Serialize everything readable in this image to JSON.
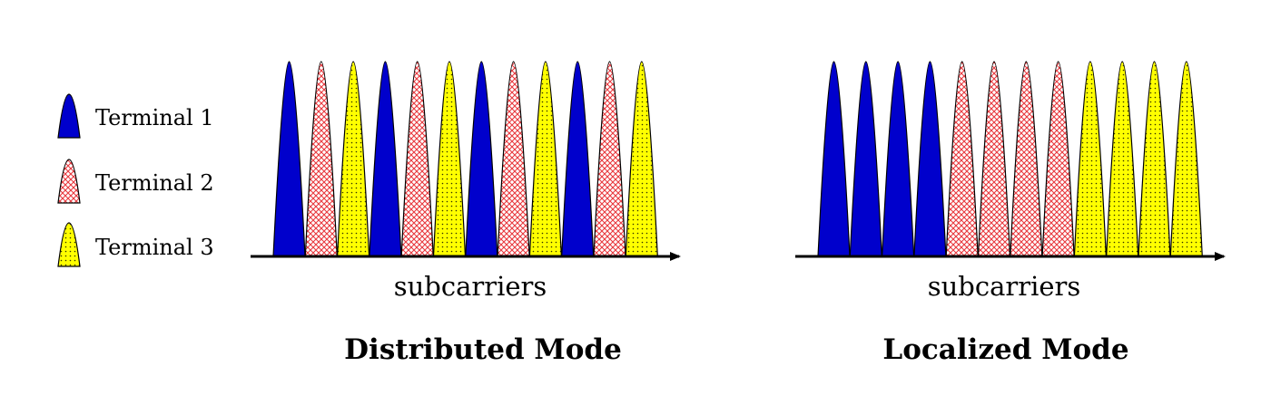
{
  "legend": [
    {
      "terminal": 1,
      "label": "Terminal 1"
    },
    {
      "terminal": 2,
      "label": "Terminal 2"
    },
    {
      "terminal": 3,
      "label": "Terminal 3"
    }
  ],
  "fills": {
    "terminal_1": "#0000cc",
    "terminal_2_pattern": "#e8383d",
    "terminal_3": "#ffff00",
    "dots": "#333300"
  },
  "panels": [
    {
      "id": "distributed",
      "axis_label": "subcarriers",
      "title": "Distributed Mode",
      "subcarriers": [
        1,
        2,
        3,
        1,
        2,
        3,
        1,
        2,
        3,
        1,
        2,
        3
      ]
    },
    {
      "id": "localized",
      "axis_label": "subcarriers",
      "title": "Localized Mode",
      "subcarriers": [
        1,
        1,
        1,
        1,
        2,
        2,
        2,
        2,
        3,
        3,
        3,
        3
      ]
    }
  ]
}
